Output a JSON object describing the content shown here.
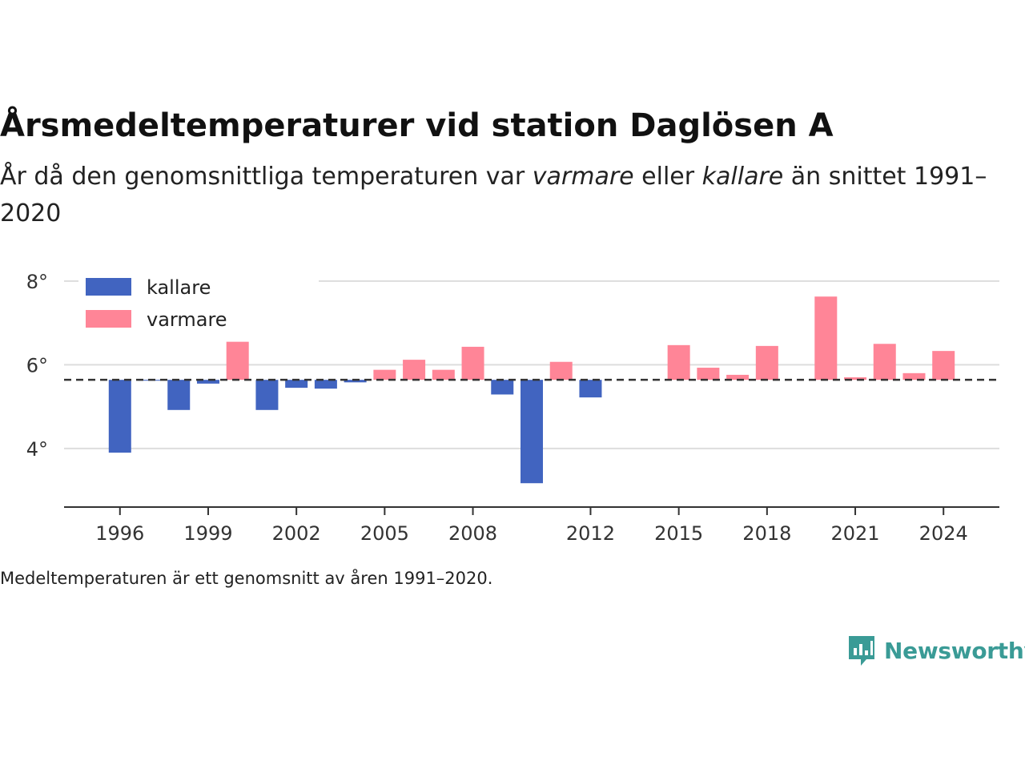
{
  "header": {
    "title": "Årsmedeltemperaturer vid station Daglösen A",
    "subtitle_before": "År då den genomsnittliga temperaturen var ",
    "subtitle_warm": "varmare",
    "subtitle_middle": " eller ",
    "subtitle_cold": "kallare",
    "subtitle_after": " än snittet 1991–2020"
  },
  "footer": {
    "note": "Medeltemperaturen är ett genomsnitt av åren 1991–2020.",
    "brand": "Newsworthy"
  },
  "colors": {
    "cold": "#4164c0",
    "warm": "#ff8597",
    "brand": "#3a9b96",
    "reference_line": "#333333",
    "grid": "#dddddd",
    "axis": "#333333"
  },
  "chart_data": {
    "type": "bar",
    "baseline": 5.64,
    "baseline_style": "dashed",
    "x_ticks": [
      1996,
      1999,
      2002,
      2005,
      2008,
      2012,
      2015,
      2018,
      2021,
      2024
    ],
    "y_ticks": [
      4,
      6,
      8
    ],
    "y_tick_labels": [
      "4°",
      "6°",
      "8°"
    ],
    "ylim": [
      2.6,
      8.4
    ],
    "xlim": [
      1994.1,
      2025.9
    ],
    "grid": "horizontal",
    "legend": {
      "placement": "top-left",
      "items": [
        {
          "label": "kallare",
          "color_key": "cold"
        },
        {
          "label": "varmare",
          "color_key": "warm"
        }
      ]
    },
    "series": [
      {
        "x": 1996,
        "y": 3.9
      },
      {
        "x": 1997,
        "y": 5.62
      },
      {
        "x": 1998,
        "y": 4.92
      },
      {
        "x": 1999,
        "y": 5.55
      },
      {
        "x": 2000,
        "y": 6.55
      },
      {
        "x": 2001,
        "y": 4.92
      },
      {
        "x": 2002,
        "y": 5.45
      },
      {
        "x": 2003,
        "y": 5.43
      },
      {
        "x": 2004,
        "y": 5.58
      },
      {
        "x": 2005,
        "y": 5.88
      },
      {
        "x": 2006,
        "y": 6.12
      },
      {
        "x": 2007,
        "y": 5.88
      },
      {
        "x": 2008,
        "y": 6.43
      },
      {
        "x": 2009,
        "y": 5.29
      },
      {
        "x": 2010,
        "y": 3.17
      },
      {
        "x": 2011,
        "y": 6.07
      },
      {
        "x": 2012,
        "y": 5.22
      },
      {
        "x": 2015,
        "y": 6.47
      },
      {
        "x": 2016,
        "y": 5.93
      },
      {
        "x": 2017,
        "y": 5.76
      },
      {
        "x": 2018,
        "y": 6.45
      },
      {
        "x": 2020,
        "y": 7.63
      },
      {
        "x": 2021,
        "y": 5.7
      },
      {
        "x": 2022,
        "y": 6.5
      },
      {
        "x": 2023,
        "y": 5.8
      },
      {
        "x": 2024,
        "y": 6.33
      }
    ]
  }
}
